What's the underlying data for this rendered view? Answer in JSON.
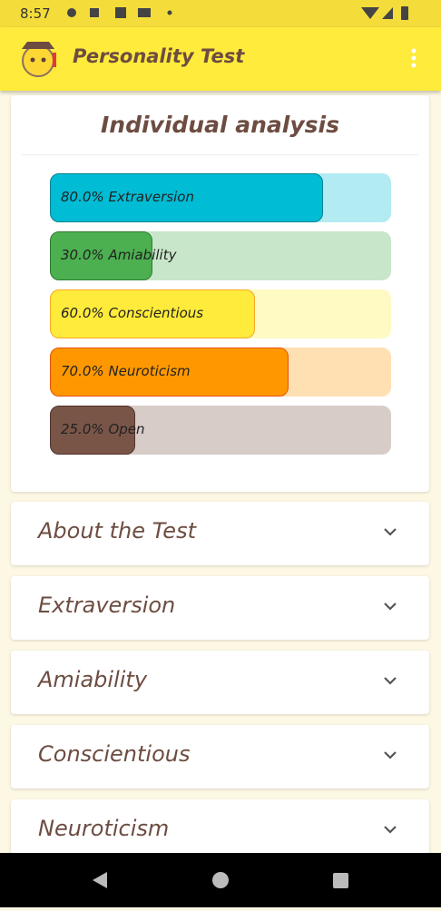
{
  "status_bar": {
    "time": "8:57"
  },
  "app_bar": {
    "title": "Personality Test"
  },
  "analysis": {
    "title": "Individual analysis",
    "xlim": [
      0,
      100
    ],
    "bars": [
      {
        "value": 80,
        "value_label": "80.0%",
        "name": "Extraversion",
        "color": "#00bcd4",
        "track": "#b2ebf2",
        "border": "#00838f"
      },
      {
        "value": 30,
        "value_label": "30.0%",
        "name": "Amiability",
        "color": "#4caf50",
        "track": "#c8e6c9",
        "border": "#2e7d32"
      },
      {
        "value": 60,
        "value_label": "60.0%",
        "name": "Conscientious",
        "color": "#ffeb3b",
        "track": "#fff9c4",
        "border": "#f9a825"
      },
      {
        "value": 70,
        "value_label": "70.0%",
        "name": "Neuroticism",
        "color": "#ff9800",
        "track": "#ffe0b2",
        "border": "#e65100"
      },
      {
        "value": 25,
        "value_label": "25.0%",
        "name": "Open",
        "color": "#795548",
        "track": "#d7ccc8",
        "border": "#4e342e"
      }
    ]
  },
  "sections": [
    "About the Test",
    "Extraversion",
    "Amiability",
    "Conscientious",
    "Neuroticism"
  ]
}
